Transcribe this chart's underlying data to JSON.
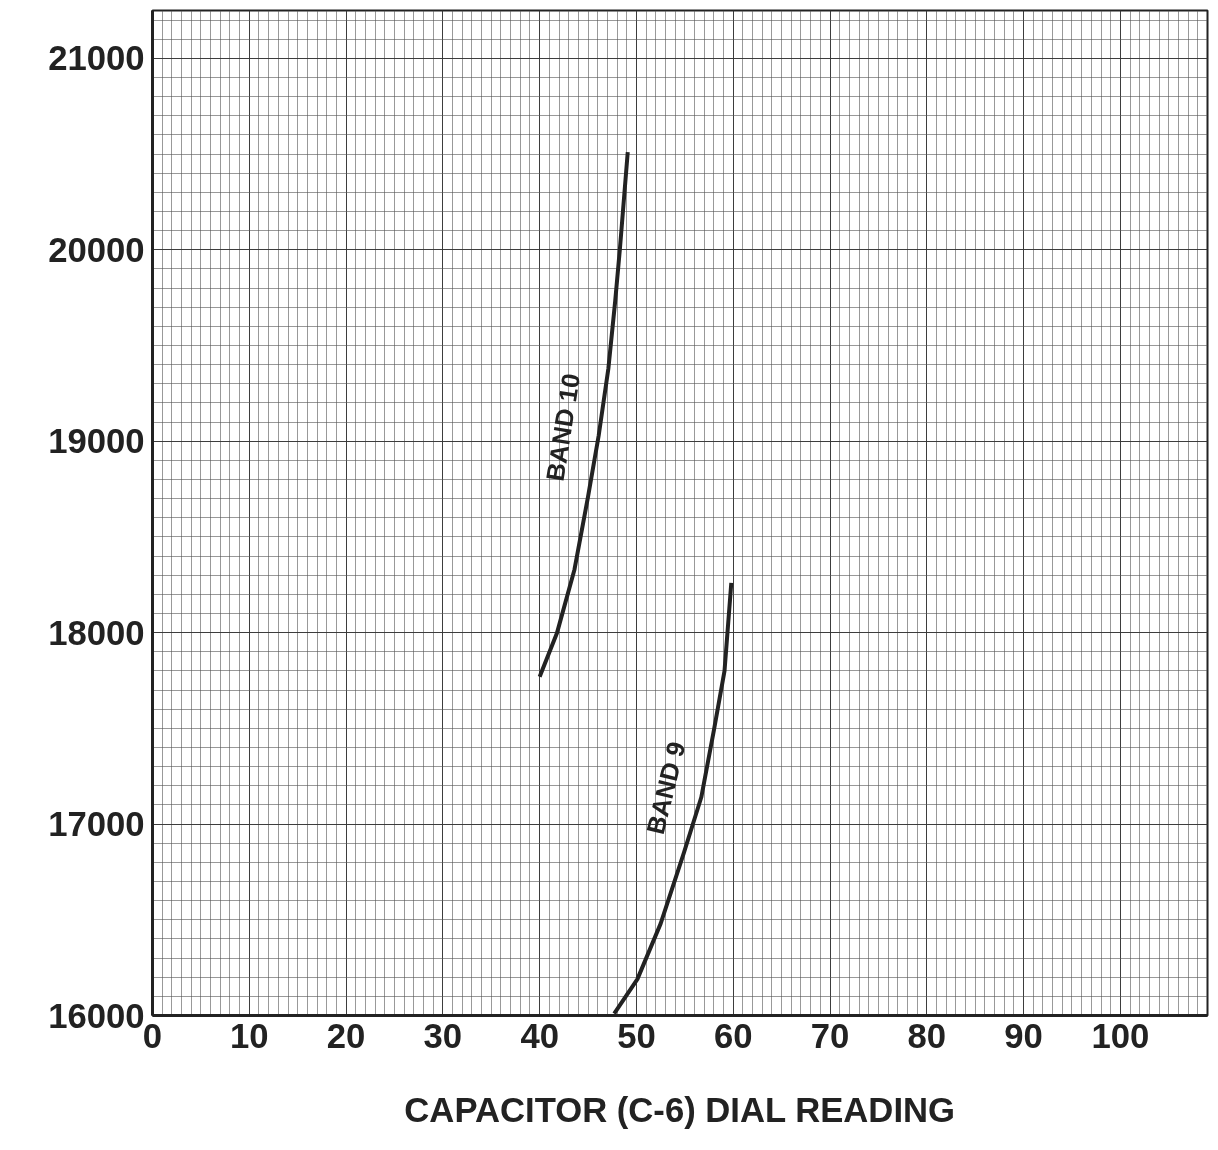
{
  "chart_data": {
    "type": "line",
    "xlabel": "CAPACITOR (C-6) DIAL READING",
    "xlim": [
      0,
      109
    ],
    "ylim": [
      16000,
      21250
    ],
    "xticks": [
      0,
      10,
      20,
      30,
      40,
      50,
      60,
      70,
      80,
      90,
      100
    ],
    "yticks": [
      16000,
      17000,
      18000,
      19000,
      20000,
      21000
    ],
    "grid": true,
    "line_style": "solid",
    "marker": "none",
    "series": [
      {
        "name": "BAND 10",
        "color": "#222222",
        "x": [
          40,
          41.8,
          43.6,
          45.0,
          46.1,
          47.1,
          47.8,
          48.3,
          49.1
        ],
        "values": [
          17770,
          18000,
          18330,
          18710,
          19030,
          19380,
          19730,
          20010,
          20510
        ]
      },
      {
        "name": "BAND 9",
        "color": "#222222",
        "x": [
          47.7,
          50.1,
          52.5,
          54.9,
          56.7,
          58.0,
          59.1,
          59.8
        ],
        "values": [
          16010,
          16190,
          16480,
          16850,
          17140,
          17490,
          17800,
          18260
        ]
      }
    ]
  }
}
